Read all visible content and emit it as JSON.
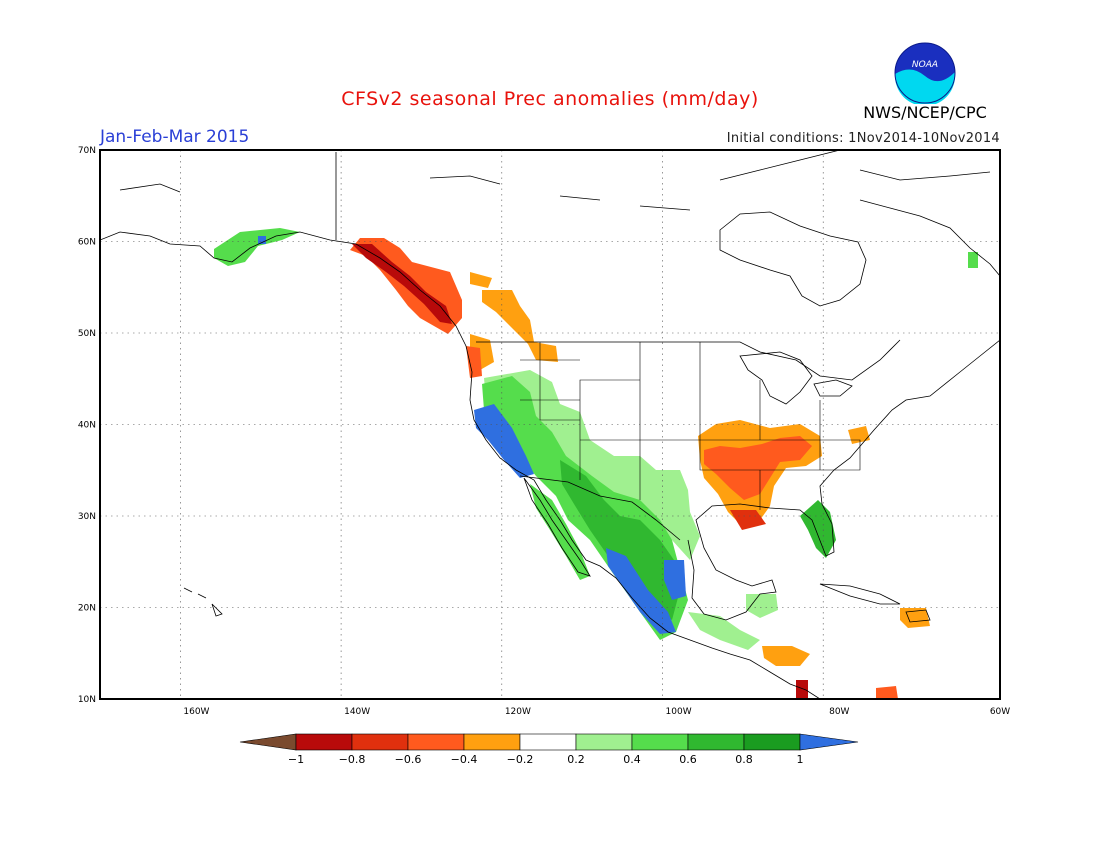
{
  "title": "CFSv2 seasonal Prec anomalies (mm/day)",
  "season": "Jan-Feb-Mar 2015",
  "initial_conditions": "Initial conditions: 1Nov2014-10Nov2014",
  "agency": "NWS/NCEP/CPC",
  "logo_text": "NOAA",
  "map": {
    "lon_range": [
      -172,
      -60
    ],
    "lat_range": [
      10,
      70
    ],
    "lat_ticks": [
      {
        "value": 70,
        "label": "70N"
      },
      {
        "value": 60,
        "label": "60N"
      },
      {
        "value": 50,
        "label": "50N"
      },
      {
        "value": 40,
        "label": "40N"
      },
      {
        "value": 30,
        "label": "30N"
      },
      {
        "value": 20,
        "label": "20N"
      },
      {
        "value": 10,
        "label": "10N"
      }
    ],
    "lon_ticks": [
      {
        "value": -160,
        "label": "160W"
      },
      {
        "value": -140,
        "label": "140W"
      },
      {
        "value": -120,
        "label": "120W"
      },
      {
        "value": -100,
        "label": "100W"
      },
      {
        "value": -80,
        "label": "80W"
      },
      {
        "value": -60,
        "label": "60W"
      }
    ],
    "gridlines": "dotted",
    "land_outline_color": "#000000"
  },
  "colorbar": {
    "labels": [
      "-1",
      "-0.8",
      "-0.6",
      "-0.4",
      "-0.2",
      "0.2",
      "0.4",
      "0.6",
      "0.8",
      "1"
    ],
    "colors": [
      "#7a4a2e",
      "#b80a0a",
      "#e0300e",
      "#ff5a1e",
      "#ffa010",
      "#ffffff",
      "#a0f090",
      "#55dd4c",
      "#30b830",
      "#1a9c20",
      "#2f6fe0"
    ]
  },
  "anomaly_regions": [
    {
      "name": "Alaska coast",
      "level": "0.4",
      "color": "#55dd4c"
    },
    {
      "name": "Alaska Panhandle / BC coast",
      "level": "-0.8",
      "color": "#b80a0a"
    },
    {
      "name": "BC coast",
      "level": "-0.4",
      "color": "#ff5a1e"
    },
    {
      "name": "Interior BC",
      "level": "-0.2",
      "color": "#ffa010"
    },
    {
      "name": "California coast",
      "level": "1",
      "color": "#2f6fe0"
    },
    {
      "name": "Southwest US",
      "level": "0.4",
      "color": "#55dd4c"
    },
    {
      "name": "Southern Plains",
      "level": "0.2",
      "color": "#a0f090"
    },
    {
      "name": "Western Mexico coast",
      "level": "1",
      "color": "#2f6fe0"
    },
    {
      "name": "Mexico interior",
      "level": "0.8",
      "color": "#1a9c20"
    },
    {
      "name": "Ohio / Mississippi Valley",
      "level": "-0.2",
      "color": "#ffa010"
    },
    {
      "name": "Mid-South core",
      "level": "-0.4",
      "color": "#ff5a1e"
    },
    {
      "name": "Florida",
      "level": "0.6",
      "color": "#30b830"
    },
    {
      "name": "Caribbean",
      "level": "-0.2",
      "color": "#ffa010"
    }
  ]
}
